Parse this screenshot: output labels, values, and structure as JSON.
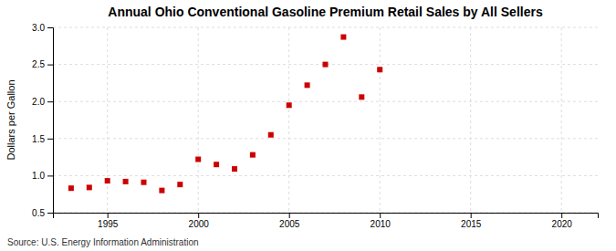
{
  "chart_data": {
    "type": "scatter",
    "title": "Annual Ohio Conventional Gasoline Premium Retail Sales by All Sellers",
    "ylabel": "Dollars per Gallon",
    "annotations": [
      "Source: U.S. Energy Information Administration"
    ],
    "x": [
      1993,
      1994,
      1995,
      1996,
      1997,
      1998,
      1999,
      2000,
      2001,
      2002,
      2003,
      2004,
      2005,
      2006,
      2007,
      2008,
      2009,
      2010
    ],
    "values": [
      0.83,
      0.84,
      0.93,
      0.92,
      0.91,
      0.8,
      0.88,
      1.22,
      1.15,
      1.09,
      1.28,
      1.55,
      1.95,
      2.22,
      2.5,
      2.87,
      2.06,
      2.43
    ],
    "color": "#cc0000",
    "marker": "square",
    "xlim": [
      1992,
      2022
    ],
    "ylim": [
      0.5,
      3.0
    ],
    "xticks": [
      1995,
      2000,
      2005,
      2010,
      2015,
      2020
    ],
    "yticks": [
      0.5,
      {
        "value": 1.0,
        "label": "1.0"
      },
      1.5,
      {
        "value": 2.0,
        "label": "2.0"
      },
      2.5,
      {
        "value": 3.0,
        "label": "3.0"
      }
    ],
    "grid": true
  }
}
